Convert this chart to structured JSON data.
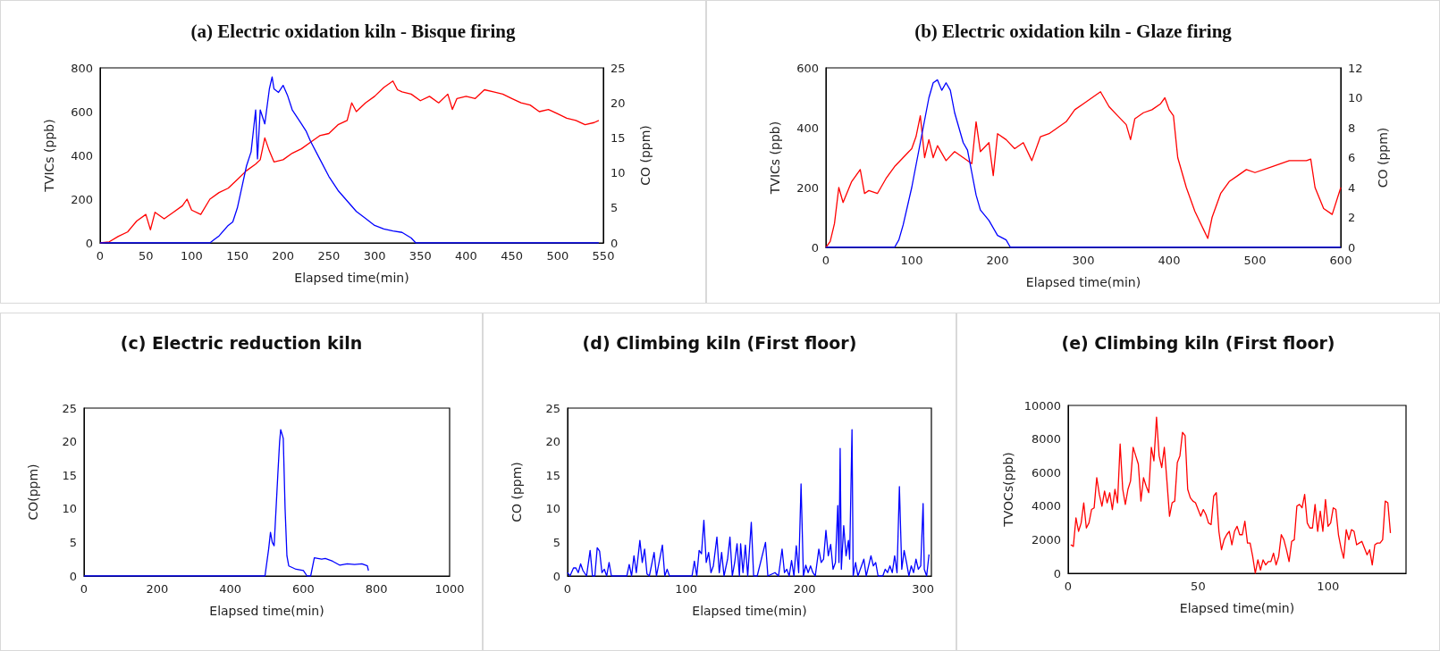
{
  "chart_data": [
    {
      "type": "line",
      "title": "(a) Electric oxidation kiln - Bisque firing",
      "xlabel": "Elapsed time(min)",
      "ylabel": "TVICs (ppb)",
      "y2label": "CO (ppm)",
      "xlim": [
        0,
        550
      ],
      "xticks": [
        0,
        50,
        100,
        150,
        200,
        250,
        300,
        350,
        400,
        450,
        500,
        550
      ],
      "ylim": [
        0,
        800
      ],
      "yticks": [
        0,
        200,
        400,
        600,
        800
      ],
      "y2lim": [
        0,
        25
      ],
      "y2ticks": [
        0,
        5,
        10,
        15,
        20,
        25
      ],
      "grid": false,
      "series": [
        {
          "color": "#ff0000",
          "x": [
            0,
            10,
            20,
            30,
            40,
            50,
            55,
            60,
            70,
            80,
            90,
            95,
            100,
            110,
            120,
            130,
            140,
            150,
            160,
            170,
            175,
            180,
            185,
            190,
            200,
            210,
            220,
            230,
            240,
            250,
            260,
            270,
            275,
            280,
            290,
            300,
            310,
            320,
            325,
            330,
            340,
            350,
            360,
            370,
            380,
            385,
            390,
            400,
            410,
            420,
            430,
            440,
            450,
            460,
            470,
            480,
            490,
            500,
            510,
            520,
            530,
            540,
            545
          ],
          "values": [
            0,
            5,
            30,
            50,
            100,
            130,
            60,
            140,
            110,
            140,
            170,
            200,
            150,
            130,
            200,
            230,
            250,
            290,
            330,
            360,
            380,
            480,
            420,
            370,
            380,
            410,
            430,
            460,
            490,
            500,
            540,
            560,
            640,
            600,
            640,
            670,
            710,
            740,
            700,
            690,
            680,
            650,
            670,
            640,
            680,
            610,
            660,
            670,
            660,
            700,
            690,
            680,
            660,
            640,
            630,
            600,
            610,
            590,
            570,
            560,
            540,
            550,
            560
          ]
        },
        {
          "color": "#0000ff",
          "axis": "y2",
          "x": [
            0,
            120,
            125,
            130,
            140,
            145,
            150,
            155,
            160,
            165,
            170,
            172,
            175,
            180,
            185,
            188,
            190,
            195,
            200,
            205,
            210,
            220,
            225,
            230,
            240,
            250,
            260,
            270,
            280,
            290,
            300,
            310,
            320,
            330,
            340,
            345,
            545
          ],
          "values": [
            0,
            0,
            0.5,
            1,
            2.5,
            3,
            5,
            8,
            11,
            13,
            19,
            12,
            19,
            17,
            22,
            23.7,
            22,
            21.5,
            22.5,
            21,
            19,
            17,
            16,
            14.5,
            12,
            9.5,
            7.5,
            6,
            4.5,
            3.5,
            2.5,
            2,
            1.7,
            1.5,
            0.7,
            0,
            0
          ]
        }
      ]
    },
    {
      "type": "line",
      "title": "(b) Electric oxidation kiln - Glaze firing",
      "xlabel": "Elapsed time(min)",
      "ylabel": "TVICs (ppb)",
      "y2label": "CO (ppm)",
      "xlim": [
        0,
        600
      ],
      "xticks": [
        0,
        100,
        200,
        300,
        400,
        500,
        600
      ],
      "ylim": [
        0,
        600
      ],
      "yticks": [
        0,
        200,
        400,
        600
      ],
      "y2lim": [
        0,
        12
      ],
      "y2ticks": [
        0,
        2,
        4,
        6,
        8,
        10,
        12
      ],
      "grid": false,
      "series": [
        {
          "color": "#ff0000",
          "x": [
            0,
            5,
            10,
            15,
            20,
            30,
            40,
            45,
            50,
            60,
            70,
            80,
            90,
            100,
            105,
            110,
            115,
            120,
            125,
            130,
            140,
            150,
            160,
            170,
            175,
            180,
            190,
            195,
            200,
            210,
            220,
            230,
            240,
            250,
            260,
            270,
            280,
            290,
            300,
            310,
            320,
            330,
            340,
            350,
            355,
            360,
            370,
            380,
            390,
            395,
            400,
            405,
            410,
            420,
            430,
            440,
            445,
            450,
            460,
            470,
            480,
            490,
            500,
            520,
            540,
            560,
            565,
            570,
            580,
            590,
            600
          ],
          "values": [
            0,
            20,
            80,
            200,
            150,
            220,
            260,
            180,
            190,
            180,
            230,
            270,
            300,
            330,
            370,
            440,
            300,
            360,
            300,
            340,
            290,
            320,
            300,
            280,
            420,
            320,
            350,
            240,
            380,
            360,
            330,
            350,
            290,
            370,
            380,
            400,
            420,
            460,
            480,
            500,
            520,
            470,
            440,
            410,
            360,
            430,
            450,
            460,
            480,
            500,
            460,
            440,
            300,
            200,
            120,
            60,
            30,
            100,
            180,
            220,
            240,
            260,
            250,
            270,
            290,
            290,
            295,
            200,
            130,
            110,
            200
          ]
        },
        {
          "color": "#0000ff",
          "axis": "y2",
          "x": [
            0,
            80,
            85,
            90,
            100,
            110,
            120,
            125,
            130,
            135,
            140,
            145,
            150,
            160,
            165,
            170,
            175,
            180,
            190,
            200,
            210,
            215,
            600
          ],
          "values": [
            0,
            0,
            0.5,
            1.5,
            4,
            7,
            10,
            11,
            11.2,
            10.5,
            11,
            10.5,
            9,
            7,
            6.5,
            5,
            3.5,
            2.5,
            1.8,
            0.8,
            0.5,
            0,
            0
          ]
        }
      ]
    },
    {
      "type": "line",
      "title": "(c) Electric reduction kiln",
      "xlabel": "Elapsed time(min)",
      "ylabel": "CO(ppm)",
      "xlim": [
        0,
        1000
      ],
      "xticks": [
        0,
        200,
        400,
        600,
        800,
        1000
      ],
      "ylim": [
        0,
        25
      ],
      "yticks": [
        0,
        5,
        10,
        15,
        20,
        25
      ],
      "grid": false,
      "series": [
        {
          "color": "#0000ff",
          "x": [
            0,
            495,
            505,
            510,
            515,
            520,
            530,
            535,
            538,
            545,
            550,
            555,
            560,
            580,
            600,
            610,
            620,
            630,
            650,
            660,
            680,
            700,
            720,
            740,
            760,
            775,
            778
          ],
          "values": [
            0,
            0,
            4,
            6.5,
            5,
            4.5,
            15,
            20,
            21.8,
            20.5,
            10,
            3,
            1.5,
            1,
            0.8,
            0,
            0,
            2.7,
            2.5,
            2.6,
            2.2,
            1.6,
            1.8,
            1.7,
            1.8,
            1.5,
            0.8
          ]
        }
      ]
    },
    {
      "type": "line",
      "title": "(d) Climbing kiln (First floor)",
      "xlabel": "Elapsed time(min)",
      "ylabel": "CO (ppm)",
      "xlim": [
        0,
        307
      ],
      "xticks": [
        0,
        100,
        200,
        300
      ],
      "ylim": [
        0,
        25
      ],
      "yticks": [
        0,
        5,
        10,
        15,
        20,
        25
      ],
      "grid": false,
      "series": [
        {
          "color": "#0000ff",
          "x": [
            0,
            2,
            5,
            7,
            9,
            11,
            13,
            16,
            19,
            21,
            23,
            25,
            27,
            29,
            31,
            33,
            35,
            37,
            50,
            52,
            54,
            56,
            58,
            61,
            63,
            65,
            67,
            69,
            73,
            75,
            80,
            82,
            84,
            86,
            105,
            107,
            109,
            111,
            113,
            115,
            117,
            119,
            121,
            123,
            126,
            128,
            130,
            132,
            135,
            137,
            139,
            141,
            143,
            145,
            146,
            148,
            150,
            152,
            155,
            157,
            160,
            167,
            169,
            175,
            178,
            181,
            183,
            185,
            187,
            189,
            191,
            193,
            195,
            197,
            199,
            201,
            203,
            205,
            207,
            209,
            212,
            214,
            216,
            218,
            220,
            222,
            224,
            226,
            228,
            229,
            230,
            231,
            233,
            235,
            237,
            238,
            240,
            241,
            243,
            245,
            250,
            252,
            256,
            258,
            260,
            262,
            266,
            268,
            270,
            272,
            274,
            276,
            278,
            280,
            282,
            284,
            286,
            288,
            290,
            292,
            294,
            296,
            298,
            300,
            301,
            303,
            305
          ],
          "values": [
            0.5,
            0,
            1.2,
            1.2,
            0.5,
            1.8,
            0.8,
            0,
            3.8,
            0,
            0,
            4.2,
            3.7,
            0.5,
            1,
            0,
            2,
            0,
            0,
            1.7,
            0,
            3,
            0.5,
            5.3,
            2,
            4,
            0.3,
            0,
            3.5,
            0,
            4.6,
            0,
            1,
            0,
            0,
            2.2,
            0,
            3.8,
            3.3,
            8.3,
            2,
            3.5,
            0.5,
            1.5,
            5.8,
            0.5,
            3.5,
            0,
            2.5,
            5.8,
            0,
            2,
            4.8,
            0,
            4.8,
            0.5,
            4.6,
            0,
            8,
            0,
            0,
            5,
            0,
            0.5,
            0,
            4,
            0.5,
            1,
            0,
            2.3,
            0,
            4.5,
            0.5,
            13.7,
            0,
            1.6,
            0.5,
            1.5,
            0.5,
            0,
            4,
            2,
            2.5,
            6.8,
            3,
            4.7,
            1,
            2,
            10.5,
            2,
            19,
            1,
            7.5,
            3,
            5.3,
            2.5,
            21.8,
            0,
            2,
            0,
            2.5,
            0,
            3,
            1.5,
            2,
            0,
            0,
            1,
            0.5,
            1.5,
            0.5,
            3,
            0.5,
            13.3,
            1,
            3.8,
            2,
            0,
            1.5,
            0.5,
            2.5,
            1,
            1.5,
            10.8,
            1,
            0,
            3.2
          ]
        }
      ]
    },
    {
      "type": "line",
      "title": "(e) Climbing kiln (First floor)",
      "xlabel": "Elapsed time(min)",
      "ylabel": "TVOCs(ppb)",
      "xlim": [
        0,
        130
      ],
      "xticks": [
        0,
        50,
        100
      ],
      "ylim": [
        0,
        10000
      ],
      "yticks": [
        0,
        2000,
        4000,
        6000,
        8000,
        10000
      ],
      "grid": false,
      "series": [
        {
          "color": "#ff0000",
          "x": [
            1,
            2,
            3,
            4,
            5,
            6,
            7,
            8,
            9,
            10,
            11,
            12,
            13,
            14,
            15,
            16,
            17,
            18,
            19,
            20,
            21,
            22,
            23,
            24,
            25,
            26,
            27,
            28,
            29,
            30,
            31,
            32,
            33,
            34,
            35,
            36,
            37,
            38,
            39,
            40,
            41,
            42,
            43,
            44,
            45,
            46,
            47,
            48,
            49,
            50,
            51,
            52,
            53,
            54,
            55,
            56,
            57,
            58,
            59,
            60,
            61,
            62,
            63,
            64,
            65,
            66,
            67,
            68,
            69,
            70,
            71,
            72,
            73,
            74,
            75,
            76,
            77,
            78,
            79,
            80,
            81,
            82,
            83,
            84,
            85,
            86,
            87,
            88,
            89,
            90,
            91,
            92,
            93,
            94,
            95,
            96,
            97,
            98,
            99,
            100,
            101,
            102,
            103,
            104,
            105,
            106,
            107,
            108,
            109,
            110,
            111,
            112,
            113,
            114,
            115,
            116,
            117,
            118,
            119,
            120,
            121,
            122,
            123,
            124
          ],
          "values": [
            1700,
            1600,
            3300,
            2500,
            3000,
            4200,
            2700,
            3000,
            3800,
            3900,
            5700,
            4700,
            4000,
            4900,
            4200,
            4800,
            3800,
            5000,
            4200,
            7700,
            5000,
            4100,
            5000,
            5500,
            7500,
            7000,
            6500,
            4300,
            5700,
            5200,
            4800,
            7500,
            6700,
            9300,
            7000,
            6300,
            7500,
            5500,
            3400,
            4200,
            4300,
            6600,
            7000,
            8400,
            8200,
            5000,
            4500,
            4300,
            4200,
            3800,
            3400,
            3800,
            3500,
            3000,
            2900,
            4600,
            4800,
            2500,
            1400,
            2000,
            2300,
            2500,
            1700,
            2500,
            2800,
            2300,
            2300,
            3100,
            1800,
            1800,
            1000,
            0,
            800,
            200,
            800,
            500,
            700,
            700,
            1200,
            500,
            1000,
            2300,
            2000,
            1400,
            700,
            1900,
            2000,
            4000,
            4100,
            3900,
            4700,
            3000,
            2700,
            2700,
            4100,
            2500,
            3700,
            2500,
            4400,
            2800,
            3000,
            3900,
            3800,
            2300,
            1500,
            900,
            2600,
            2000,
            2600,
            2500,
            1700,
            1800,
            1900,
            1500,
            1100,
            1400,
            500,
            1700,
            1800,
            1800,
            2000,
            4300,
            4200,
            2400
          ]
        }
      ]
    }
  ]
}
